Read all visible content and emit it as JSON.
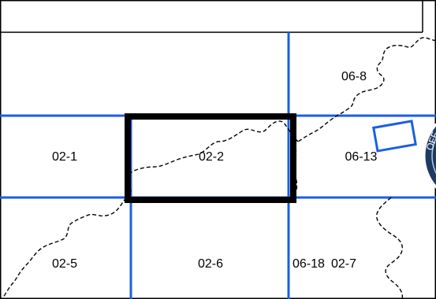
{
  "map": {
    "colors": {
      "grid_line": "#1a5fe0",
      "selected_frame": "#000000",
      "boundary": "#000000",
      "inset_box": "#1a5fe0",
      "seal_fill": "#1d3a63"
    },
    "tiles": {
      "t02_1": "02-1",
      "t02_2": "02-2",
      "t06_13": "06-13",
      "t06_8": "06-8",
      "t02_5": "02-5",
      "t02_6": "02-6",
      "t06_18": "06-18",
      "t02_7": "02-7"
    },
    "selected_tile": "02-2"
  }
}
